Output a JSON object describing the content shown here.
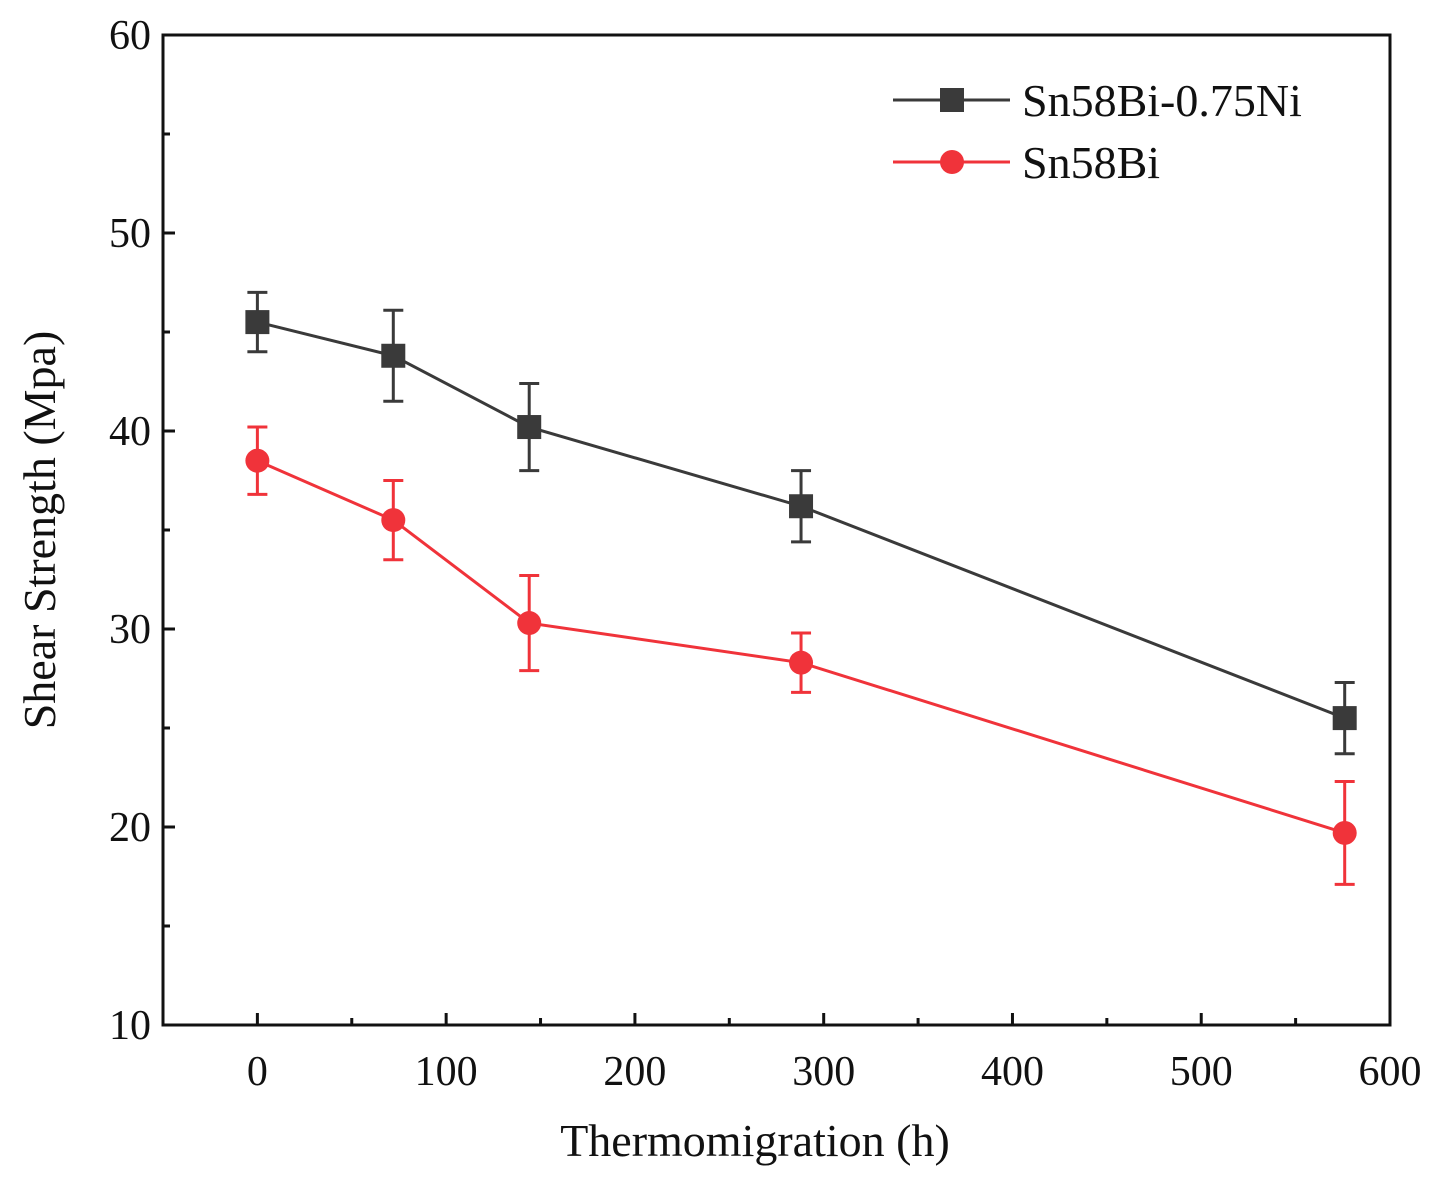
{
  "chart_data": {
    "type": "line",
    "title": "",
    "xlabel": "Thermomigration (h)",
    "ylabel": "Shear Strength (Mpa)",
    "xlim": [
      -50,
      600
    ],
    "ylim": [
      10,
      60
    ],
    "xticks": [
      0,
      100,
      200,
      300,
      400,
      500,
      600
    ],
    "yticks": [
      10,
      20,
      30,
      40,
      50,
      60
    ],
    "x_tick_labels": [
      "0",
      "100",
      "200",
      "300",
      "400",
      "500",
      "600"
    ],
    "y_tick_labels": [
      "10",
      "20",
      "30",
      "40",
      "50",
      "60"
    ],
    "legend_position": "top-right",
    "series": [
      {
        "name": "Sn58Bi-0.75Ni",
        "color": "#3a3a3a",
        "marker": "square",
        "x": [
          0,
          72,
          144,
          288,
          576
        ],
        "y": [
          45.5,
          43.8,
          40.2,
          36.2,
          25.5
        ],
        "err": [
          1.5,
          2.3,
          2.2,
          1.8,
          1.8
        ]
      },
      {
        "name": "Sn58Bi",
        "color": "#f0333a",
        "marker": "circle",
        "x": [
          0,
          72,
          144,
          288,
          576
        ],
        "y": [
          38.5,
          35.5,
          30.3,
          28.3,
          19.7
        ],
        "err": [
          1.7,
          2.0,
          2.4,
          1.5,
          2.6
        ]
      }
    ]
  }
}
